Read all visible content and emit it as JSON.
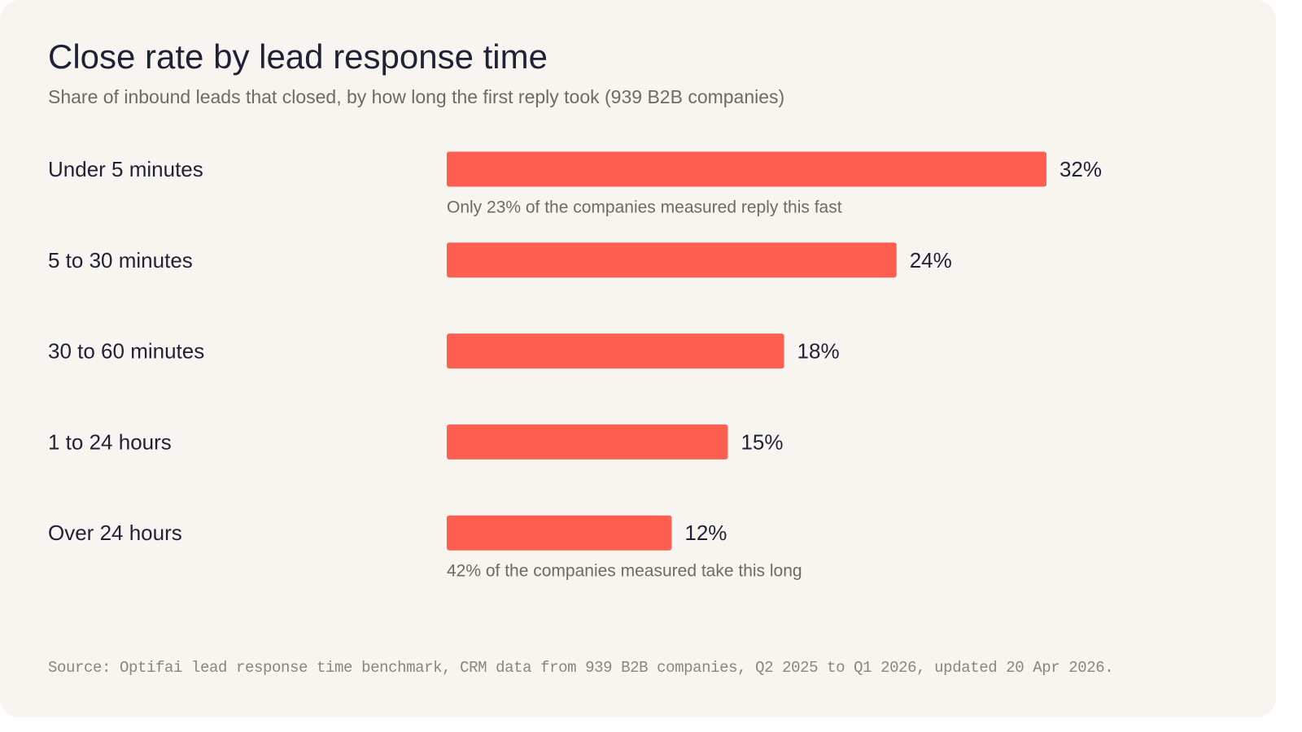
{
  "header": {
    "title": "Close rate by lead response time",
    "subtitle": "Share of inbound leads that closed, by how long the first reply took (939 B2B companies)"
  },
  "colors": {
    "bar": "#ff5f50",
    "background": "#f8f5f0",
    "text": "#1f2137",
    "muted": "#6e6a66"
  },
  "chart_data": {
    "type": "bar",
    "orientation": "horizontal",
    "title": "Close rate by lead response time",
    "subtitle": "Share of inbound leads that closed, by how long the first reply took (939 B2B companies)",
    "categories": [
      "Under 5 minutes",
      "5 to 30 minutes",
      "30 to 60 minutes",
      "1 to 24 hours",
      "Over 24 hours"
    ],
    "values": [
      32,
      24,
      18,
      15,
      12
    ],
    "value_labels": [
      "32%",
      "24%",
      "18%",
      "15%",
      "12%"
    ],
    "unit": "%",
    "annotations": [
      {
        "category": "Under 5 minutes",
        "text": "Only 23% of the companies measured reply this fast"
      },
      {
        "category": "Over 24 hours",
        "text": "42% of the companies measured take this long"
      }
    ],
    "grid": false,
    "legend": "none"
  },
  "footer": {
    "source": "Source: Optifai lead response time benchmark, CRM data from 939 B2B companies, Q2 2025 to Q1 2026, updated 20 Apr 2026."
  }
}
